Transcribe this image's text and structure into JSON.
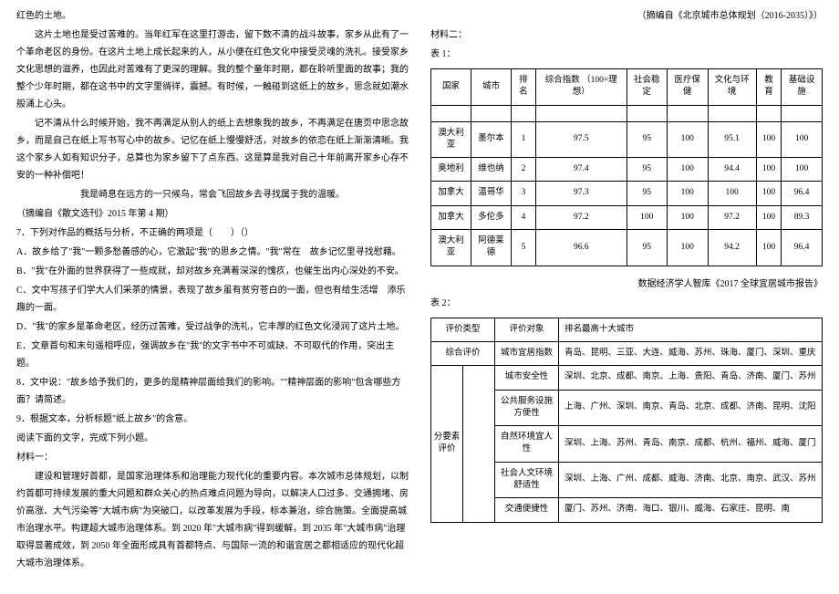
{
  "left": {
    "p1": "红色的土地。",
    "p2": "这片土地也是受过苦难的。当年红军在这里打游击，留下数不清的战斗故事，家乡从此有了一个革命老区的身份。在这片土地上成长起来的人，从小便在红色文化中接受灵魂的洗礼。接受家乡文化思想的滋养，也因此对苦难有了更深的理解。我的整个童年时期，都在聆听里面的故事；我的整个少年时期，都在这书中的文字里徜徉，震撼。有时候，一触碰到这纸上的故乡，思念就如潮水般涌上心头。",
    "p3": "记不清从什么时候开始，我不再满足从别人的纸上去想象我的故乡，不再满足在唐页中思念故乡，而是自己在纸上写书写心中的故乡。记忆在纸上慢慢舒活，对故乡的依恋在纸上渐渐清晰。我这个家乡人如有知识分子，总算也为家乡留下了点东西。这是算是我对自己十年前离开家乡心存不安的一种补偿吧！",
    "p4": "我是崎息在远方的一只候鸟，常会飞回故乡去寻找属于我的温暖。",
    "p5": "（摘编自《散文选刊》2015 年第 4 期）",
    "q7": "7．下列对作品的概括与分析，不正确的两项是（　　）（）",
    "q7a": "A．故乡给了\"我\"一颗多愁善感的心，它激起\"我\"的思乡之情。\"我\"常在　故乡记忆里寻找慰藉。",
    "q7b": "B．\"我\"在外面的世界获得了一些成就，却对故乡充满着深深的愧疚，也催生出内心深处的不安。",
    "q7c": "C．文中写孩子们学大人们采茶的情景，表现了故乡虽有贫穷苍白的一面，但也有给生活增　添乐趣的一面。",
    "q7d": "D．\"我\"的家乡是革命老区，经历过苦难，受过战争的洗礼，它丰厚的红色文化浸润了这片土地。",
    "q7e": "E．文章首句和末句遥相呼应，强调故乡在\"我\"的文字书中不可或缺、不可取代的作用，突出主题。",
    "q8": "8．文中说：\"故乡给予我们的，更多的是精神层面给我们的影响。\"\"精神层面的影响\"包含哪些方面？请简述。",
    "q9": "9．根据文本，分析标题\"纸上故乡\"的含意。",
    "readnext": "阅读下面的文字，完成下列小题。",
    "mat1": "材料一：",
    "mat1p": "建设和管理好首都，是国家治理体系和治理能力现代化的重要内容。本次城市总体规划，以制约首都可持续发展的重大问题和群众关心的热点难点问题为导向，以解决人口过多、交通拥堵、房价高涨、大气污染等\"大城市病\"为突破口，以改革发展为手段，标本兼治，综合施策。全面提高城市治理水平。构建超大城市治理体系。到 2020 年\"大城市病\"得到缓解，到 2035 年\"大城市病\"治理取得显著成效，到 2050 年全面形成具有首都特点、与国际一流的和谐宜居之都相适应的现代化超大城市治理体系。"
  },
  "right": {
    "srcline": "（摘编自《北京城市总体规划（2016-2035）》）",
    "mat2": "材料二：",
    "t1label": "表 1：",
    "t1": {
      "headers": [
        "国家",
        "城市",
        "排名",
        "综合指数\n（100=理想）",
        "社会稳定",
        "医疗保健",
        "文化与环境",
        "教育",
        "基础设施"
      ],
      "rows": [
        [
          "澳大利亚",
          "墨尔本",
          "1",
          "97.5",
          "95",
          "100",
          "95.1",
          "100",
          "100"
        ],
        [
          "奥地利",
          "维也纳",
          "2",
          "97.4",
          "95",
          "100",
          "94.4",
          "100",
          "100"
        ],
        [
          "加拿大",
          "温哥华",
          "3",
          "97.3",
          "95",
          "100",
          "100",
          "100",
          "96.4"
        ],
        [
          "加拿大",
          "多伦多",
          "4",
          "97.2",
          "100",
          "100",
          "97.2",
          "100",
          "89.3"
        ],
        [
          "澳大利亚",
          "阿德莱德",
          "5",
          "96.6",
          "95",
          "100",
          "94.2",
          "100",
          "96.4"
        ]
      ]
    },
    "t1src": "数据经济学人智库《2017 全球宜居城市报告》",
    "t2label": "表 2：",
    "t2": {
      "h1": "评价类型",
      "h2": "评价对象",
      "h3": "排名最高十大城市",
      "r1a": "综合评价",
      "r1b": "城市宜居指数",
      "r1c": "青岛、昆明、三亚、大连、威海、苏州、珠海、厦门、深圳、重庆",
      "catlabel": "分要素评价",
      "r2b": "城市安全性",
      "r2c": "深圳、北京、成都、南京、上海、贵阳、青岛、济南、厦门、苏州",
      "r3b": "公共服务设施方便性",
      "r3c": "上海、广州、深圳、南京、青岛、北京、成都、济南、昆明、沈阳",
      "r4b": "自然环境宜人性",
      "r4c": "深圳、上海、苏州、青岛、南京、成都、杭州、福州、威海、厦门",
      "r5b": "社会人文环境舒适性",
      "r5c": "深圳、上海、广州、成都、威海、济南、北京、南京、武汉、苏州",
      "r6b": "交通便捷性",
      "r6c": "厦门、苏州、济南、海口、银川、威海、石家庄、昆明、南"
    }
  }
}
